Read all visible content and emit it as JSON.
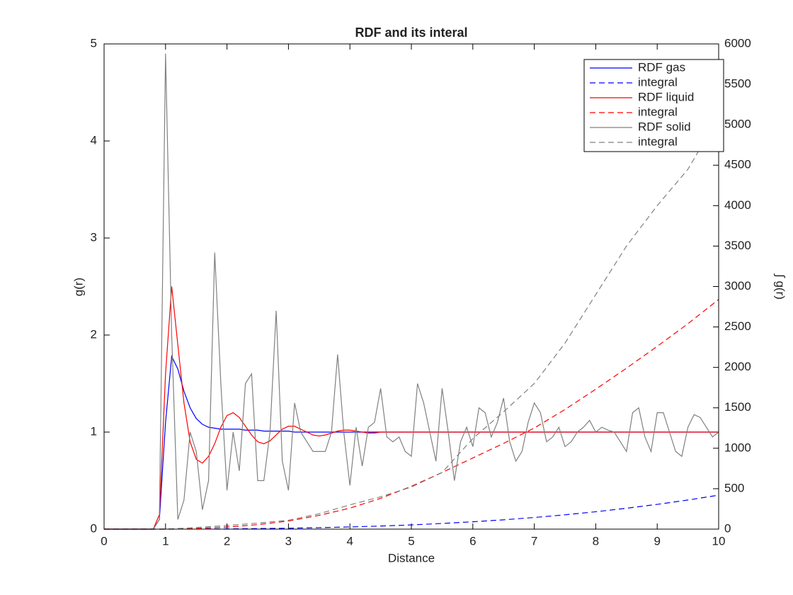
{
  "chart_data": {
    "type": "line",
    "title": "RDF and its interal",
    "xlabel": "Distance",
    "ylabel": "g(r)",
    "y2label": "∫ g(r)",
    "xlim": [
      0,
      10
    ],
    "ylim": [
      0,
      5
    ],
    "y2lim": [
      0,
      6000
    ],
    "xticks": [
      0,
      1,
      2,
      3,
      4,
      5,
      6,
      7,
      8,
      9,
      10
    ],
    "yticks": [
      0,
      1,
      2,
      3,
      4,
      5
    ],
    "y2ticks": [
      0,
      500,
      1000,
      1500,
      2000,
      2500,
      3000,
      3500,
      4000,
      4500,
      5000,
      5500,
      6000
    ],
    "legend": "upper right",
    "grid": false,
    "x": [
      0,
      0.1,
      0.2,
      0.3,
      0.4,
      0.5,
      0.6,
      0.7,
      0.8,
      0.9,
      1,
      1.1,
      1.2,
      1.3,
      1.4,
      1.5,
      1.6,
      1.7,
      1.8,
      1.9,
      2,
      2.1,
      2.2,
      2.3,
      2.4,
      2.5,
      2.6,
      2.7,
      2.8,
      2.9,
      3,
      3.1,
      3.2,
      3.3,
      3.4,
      3.5,
      3.6,
      3.7,
      3.8,
      3.9,
      4,
      4.1,
      4.2,
      4.3,
      4.4,
      4.5,
      4.6,
      4.7,
      4.8,
      4.9,
      5,
      5.1,
      5.2,
      5.3,
      5.4,
      5.5,
      5.6,
      5.7,
      5.8,
      5.9,
      6,
      6.1,
      6.2,
      6.3,
      6.4,
      6.5,
      6.6,
      6.7,
      6.8,
      6.9,
      7,
      7.1,
      7.2,
      7.3,
      7.4,
      7.5,
      7.6,
      7.7,
      7.8,
      7.9,
      8,
      8.1,
      8.2,
      8.3,
      8.4,
      8.5,
      8.6,
      8.7,
      8.8,
      8.9,
      9,
      9.1,
      9.2,
      9.3,
      9.4,
      9.5,
      9.6,
      9.7,
      9.8,
      9.9,
      10
    ],
    "series": [
      {
        "name": "RDF gas",
        "color": "#0000ff",
        "linestyle": "solid",
        "axis": "y",
        "values": [
          0,
          0,
          0,
          0,
          0,
          0,
          0,
          0,
          0,
          0.1,
          1.1,
          1.78,
          1.65,
          1.42,
          1.25,
          1.14,
          1.08,
          1.05,
          1.04,
          1.03,
          1.03,
          1.03,
          1.03,
          1.02,
          1.02,
          1.02,
          1.01,
          1.01,
          1.01,
          1.01,
          1.01,
          1,
          1,
          1,
          1,
          1,
          1,
          1,
          1,
          1,
          1,
          1,
          1,
          1,
          1,
          1,
          1,
          1,
          1,
          1,
          1,
          1,
          1,
          1,
          1,
          1,
          1,
          1,
          1,
          1,
          1,
          1,
          1,
          1,
          1,
          1,
          1,
          1,
          1,
          1,
          1,
          1,
          1,
          1,
          1,
          1,
          1,
          1,
          1,
          1,
          1,
          1,
          1,
          1,
          1,
          1,
          1,
          1,
          1,
          1,
          1,
          1,
          1,
          1,
          1,
          1,
          1,
          1,
          1,
          1,
          1
        ]
      },
      {
        "name": "integral",
        "color": "#0000ff",
        "linestyle": "dashed",
        "axis": "y2",
        "x": [
          0,
          0.5,
          1,
          1.5,
          2,
          2.5,
          3,
          3.5,
          4,
          4.5,
          5,
          5.5,
          6,
          6.5,
          7,
          7.5,
          8,
          8.5,
          9,
          9.5,
          10
        ],
        "values": [
          0,
          0,
          0,
          1,
          3,
          7,
          11,
          18,
          27,
          38,
          52,
          70,
          91,
          115,
          144,
          177,
          215,
          258,
          306,
          360,
          420
        ]
      },
      {
        "name": "RDF liquid",
        "color": "#ff0000",
        "linestyle": "solid",
        "axis": "y",
        "values": [
          0,
          0,
          0,
          0,
          0,
          0,
          0,
          0,
          0,
          0.15,
          1.6,
          2.5,
          1.9,
          1.3,
          0.9,
          0.72,
          0.68,
          0.75,
          0.88,
          1.05,
          1.17,
          1.2,
          1.15,
          1.06,
          0.97,
          0.9,
          0.88,
          0.91,
          0.97,
          1.03,
          1.06,
          1.06,
          1.03,
          1,
          0.97,
          0.96,
          0.97,
          0.99,
          1.01,
          1.02,
          1.02,
          1.01,
          1,
          0.99,
          0.99,
          1,
          1,
          1,
          1,
          1,
          1,
          1,
          1,
          1,
          1,
          1,
          1,
          1,
          1,
          1,
          1,
          1,
          1,
          1,
          1,
          1,
          1,
          1,
          1,
          1,
          1,
          1,
          1,
          1,
          1,
          1,
          1,
          1,
          1,
          1,
          1,
          1,
          1,
          1,
          1,
          1,
          1,
          1,
          1,
          1,
          1,
          1,
          1,
          1,
          1,
          1,
          1,
          1,
          1,
          1,
          1
        ]
      },
      {
        "name": "integral",
        "color": "#ff0000",
        "linestyle": "dashed",
        "axis": "y2",
        "x": [
          0,
          0.5,
          1,
          1.5,
          2,
          2.5,
          3,
          3.5,
          4,
          4.5,
          5,
          5.5,
          6,
          6.5,
          7,
          7.5,
          8,
          8.5,
          9,
          9.5,
          10
        ],
        "values": [
          0,
          0,
          0,
          8,
          25,
          55,
          100,
          170,
          260,
          380,
          530,
          700,
          880,
          1060,
          1250,
          1480,
          1730,
          1990,
          2260,
          2540,
          2840
        ]
      },
      {
        "name": "RDF solid",
        "color": "#808080",
        "linestyle": "solid",
        "axis": "y",
        "values": [
          0,
          0,
          0,
          0,
          0,
          0,
          0,
          0,
          0,
          0.1,
          4.9,
          2,
          0.1,
          0.3,
          1,
          0.8,
          0.2,
          0.5,
          2.85,
          1.5,
          0.4,
          1,
          0.6,
          1.5,
          1.6,
          0.5,
          0.5,
          1,
          2.25,
          0.7,
          0.4,
          1.3,
          1,
          0.9,
          0.8,
          0.8,
          0.8,
          1,
          1.8,
          1,
          0.45,
          1.05,
          0.65,
          1.05,
          1.1,
          1.45,
          0.95,
          0.9,
          0.95,
          0.8,
          0.75,
          1.5,
          1.3,
          1,
          0.7,
          1.45,
          1,
          0.5,
          0.9,
          1.05,
          0.85,
          1.25,
          1.2,
          0.95,
          1.1,
          1.35,
          0.9,
          0.7,
          0.8,
          1.1,
          1.3,
          1.2,
          0.9,
          0.95,
          1.05,
          0.85,
          0.9,
          1,
          1.05,
          1.12,
          1,
          1.05,
          1.02,
          1,
          0.9,
          0.8,
          1.2,
          1.25,
          0.95,
          0.8,
          1.2,
          1.2,
          1,
          0.8,
          0.75,
          1.05,
          1.18,
          1.15,
          1.05,
          0.95,
          1
        ]
      },
      {
        "name": "integral",
        "color": "#808080",
        "linestyle": "dashed",
        "axis": "y2",
        "x": [
          0,
          0.5,
          1,
          1.5,
          2,
          2.5,
          3,
          3.5,
          4,
          4.5,
          5,
          5.5,
          6,
          6.5,
          7,
          7.5,
          8,
          8.5,
          9,
          9.5,
          10
        ],
        "values": [
          0,
          0,
          0,
          20,
          45,
          75,
          110,
          190,
          300,
          400,
          520,
          700,
          1120,
          1450,
          1800,
          2300,
          2900,
          3500,
          4000,
          4450,
          5100
        ]
      }
    ]
  }
}
